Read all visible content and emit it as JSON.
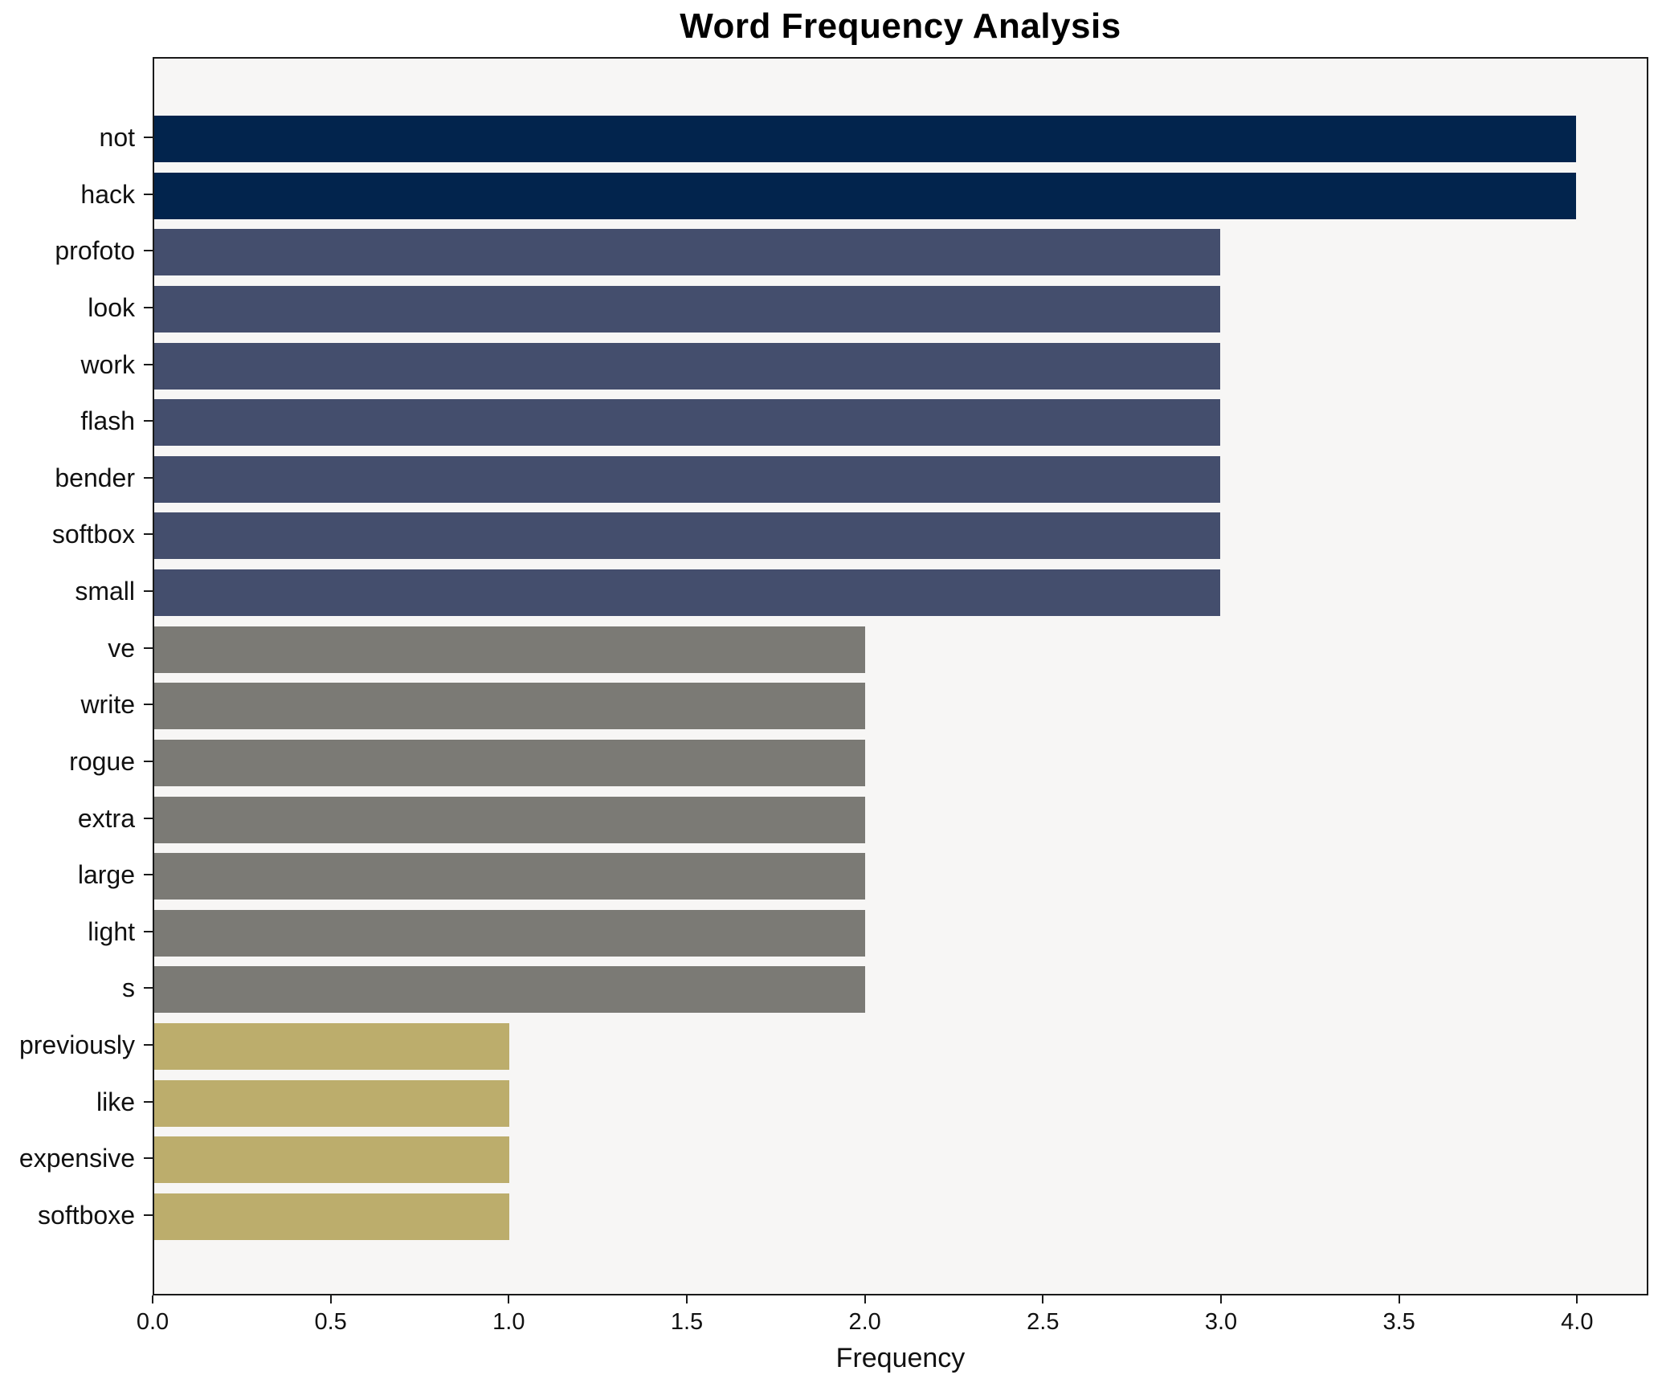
{
  "chart": {
    "title": "Word Frequency Analysis",
    "xlabel": "Frequency"
  },
  "chart_data": {
    "type": "bar",
    "orientation": "horizontal",
    "title": "Word Frequency Analysis",
    "xlabel": "Frequency",
    "ylabel": "",
    "categories": [
      "not",
      "hack",
      "profoto",
      "look",
      "work",
      "flash",
      "bender",
      "softbox",
      "small",
      "ve",
      "write",
      "rogue",
      "extra",
      "large",
      "light",
      "s",
      "previously",
      "like",
      "expensive",
      "softboxe"
    ],
    "values": [
      4,
      4,
      3,
      3,
      3,
      3,
      3,
      3,
      3,
      2,
      2,
      2,
      2,
      2,
      2,
      2,
      1,
      1,
      1,
      1
    ],
    "bar_colors": [
      "#02244d",
      "#02244d",
      "#444e6d",
      "#444e6d",
      "#444e6d",
      "#444e6d",
      "#444e6d",
      "#444e6d",
      "#444e6d",
      "#7b7a75",
      "#7b7a75",
      "#7b7a75",
      "#7b7a75",
      "#7b7a75",
      "#7b7a75",
      "#7b7a75",
      "#bcad6c",
      "#bcad6c",
      "#bcad6c",
      "#bcad6c"
    ],
    "color_legend": {
      "frequency_4": "#02244d",
      "frequency_3": "#444e6d",
      "frequency_2": "#7b7a75",
      "frequency_1": "#bcad6c"
    },
    "xlim": [
      0,
      4.2
    ],
    "xticks": [
      0.0,
      0.5,
      1.0,
      1.5,
      2.0,
      2.5,
      3.0,
      3.5,
      4.0
    ],
    "xtick_labels": [
      "0.0",
      "0.5",
      "1.0",
      "1.5",
      "2.0",
      "2.5",
      "3.0",
      "3.5",
      "4.0"
    ],
    "grid": false,
    "legend": "none",
    "plot_background": "#f7f6f5",
    "figure_background": "#ffffff",
    "spine_color": "#1a1a1a"
  }
}
